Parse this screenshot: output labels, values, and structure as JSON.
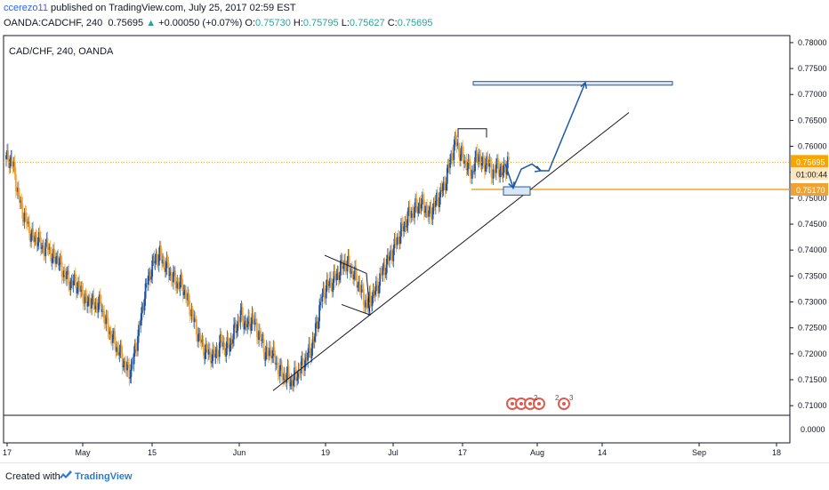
{
  "header": {
    "author": "ccerezo11",
    "published": "published on TradingView.com, July 25, 2017 02:59 EST",
    "symbol": "OANDA:CADCHF, 240",
    "last": "0.75695",
    "change": "+0.00050 (+0.07%)",
    "o_label": "O:",
    "o": "0.75730",
    "h_label": "H:",
    "h": "0.75795",
    "l_label": "L:",
    "l": "0.75627",
    "c_label": "C:",
    "c": "0.75695"
  },
  "footer": {
    "created_with": "Created with",
    "brand": "TradingView"
  },
  "colors": {
    "candle_up": "#1e53a4",
    "candle_down": "#f0a330",
    "accent": "#1e5aa8",
    "price_badge": "#f7a600",
    "level_line": "#f0a330"
  },
  "chart_data": {
    "type": "candlestick",
    "title": "CAD/CHF, 240, OANDA",
    "y_ticks": [
      "0.78000",
      "0.77500",
      "0.77000",
      "0.76500",
      "0.76000",
      "0.75500",
      "0.75000",
      "0.74500",
      "0.74000",
      "0.73500",
      "0.73000",
      "0.72500",
      "0.72000",
      "0.71500",
      "0.71000"
    ],
    "ylim": [
      0.709,
      0.7805
    ],
    "x_ticks": [
      "17",
      "May",
      "15",
      "Jun",
      "19",
      "Jul",
      "17",
      "Aug",
      "14",
      "Sep",
      "18"
    ],
    "current_price": "0.75695",
    "countdown": "01:00:44",
    "level_price": "0.75170",
    "lower_pane_tick": "0.0000",
    "events": [
      "2",
      "2",
      "3"
    ],
    "close_path": [
      0.7575,
      0.7577,
      0.7555,
      0.751,
      0.748,
      0.746,
      0.744,
      0.742,
      0.7425,
      0.741,
      0.74,
      0.741,
      0.738,
      0.739,
      0.737,
      0.7355,
      0.7345,
      0.7335,
      0.734,
      0.7325,
      0.7315,
      0.7295,
      0.7305,
      0.729,
      0.73,
      0.7285,
      0.726,
      0.724,
      0.7225,
      0.721,
      0.7195,
      0.7175,
      0.7165,
      0.7185,
      0.7225,
      0.7265,
      0.7315,
      0.7345,
      0.737,
      0.7385,
      0.739,
      0.7375,
      0.7365,
      0.735,
      0.734,
      0.7335,
      0.733,
      0.7305,
      0.7285,
      0.726,
      0.7235,
      0.7215,
      0.7205,
      0.72,
      0.7195,
      0.7205,
      0.7225,
      0.721,
      0.7215,
      0.7235,
      0.7255,
      0.7275,
      0.726,
      0.7255,
      0.727,
      0.725,
      0.7235,
      0.721,
      0.7195,
      0.721,
      0.7185,
      0.717,
      0.7155,
      0.716,
      0.7145,
      0.7155,
      0.7165,
      0.7175,
      0.719,
      0.7205,
      0.7225,
      0.7265,
      0.7305,
      0.7325,
      0.7335,
      0.734,
      0.735,
      0.7365,
      0.7375,
      0.737,
      0.736,
      0.7345,
      0.733,
      0.7305,
      0.7295,
      0.731,
      0.732,
      0.734,
      0.736,
      0.7375,
      0.739,
      0.7405,
      0.7425,
      0.744,
      0.7455,
      0.747,
      0.7475,
      0.7485,
      0.749,
      0.7485,
      0.7465,
      0.748,
      0.7495,
      0.751,
      0.7525,
      0.7555,
      0.7585,
      0.761,
      0.759,
      0.7575,
      0.7565,
      0.7545,
      0.757,
      0.7585,
      0.756,
      0.7575,
      0.7555,
      0.755,
      0.7565,
      0.7545,
      0.7565,
      0.7569
    ]
  }
}
